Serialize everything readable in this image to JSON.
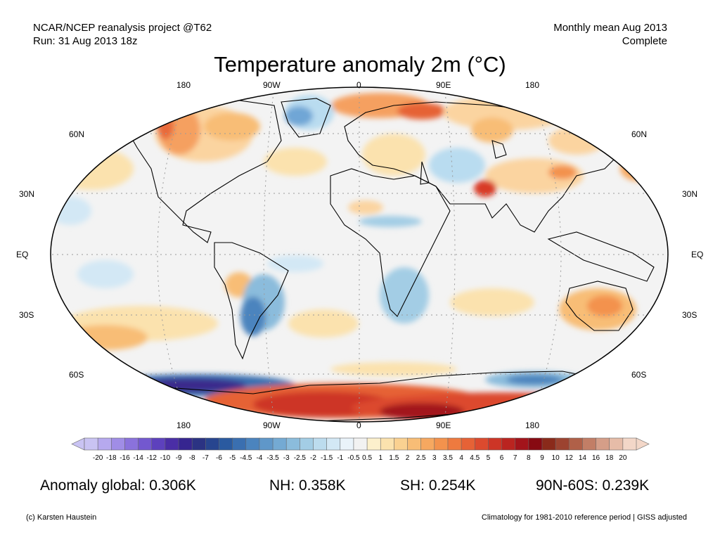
{
  "header": {
    "source_line1": "NCAR/NCEP reanalysis project @T62",
    "source_line2": "Run: 31 Aug 2013 18z",
    "period_line1": "Monthly mean Aug 2013",
    "period_line2": "Complete"
  },
  "map": {
    "title": "Temperature anomaly 2m (°C)",
    "projection": "Robinson",
    "lon_labels_top": [
      "180",
      "90W",
      "0",
      "90E",
      "180"
    ],
    "lon_labels_bottom": [
      "180",
      "90W",
      "0",
      "90E",
      "180"
    ],
    "lat_labels_left": [
      "60N",
      "30N",
      "EQ",
      "30S",
      "60S"
    ],
    "lat_labels_right": [
      "60N",
      "30N",
      "EQ",
      "30S",
      "60S"
    ],
    "colors": {
      "land_ocean_neutral": "#f3f3f3",
      "warm_light": "#fbd4a0",
      "warm_mid": "#f5a060",
      "warm_strong": "#d83a26",
      "warm_extreme": "#9c0f14",
      "cold_light": "#b9dcf0",
      "cold_mid": "#6fa6d6",
      "cold_strong": "#3a5fb0",
      "cold_extreme": "#3a2a8c"
    }
  },
  "legend": {
    "tick_labels": [
      "-20",
      "-18",
      "-16",
      "-14",
      "-12",
      "-10",
      "-9",
      "-8",
      "-7",
      "-6",
      "-5",
      "-4.5",
      "-4",
      "-3.5",
      "-3",
      "-2.5",
      "-2",
      "-1.5",
      "-1",
      "-0.5",
      "0.5",
      "1",
      "1.5",
      "2",
      "2.5",
      "3",
      "3.5",
      "4",
      "4.5",
      "5",
      "6",
      "7",
      "8",
      "9",
      "10",
      "12",
      "14",
      "16",
      "18",
      "20"
    ],
    "colors": [
      "#c9c3f3",
      "#b6a9ee",
      "#a08de6",
      "#8a72dc",
      "#7358cf",
      "#5d41bd",
      "#4a2ea6",
      "#362590",
      "#2b3383",
      "#27458f",
      "#2a5aa0",
      "#3a6fb0",
      "#4b84be",
      "#5f97c9",
      "#74aad3",
      "#8bbcdc",
      "#a3cde5",
      "#bcdcee",
      "#d3e8f5",
      "#eaf3fa",
      "#f2f2f2",
      "#fcf0cc",
      "#fbe2ae",
      "#fad191",
      "#f8bd76",
      "#f6a860",
      "#f3924d",
      "#ee7a3f",
      "#e66236",
      "#dc4a2e",
      "#cd3526",
      "#ba2420",
      "#a3141b",
      "#870a12",
      "#8a2a1a",
      "#9c4330",
      "#b06048",
      "#c27e66",
      "#d59e88",
      "#e6bca8",
      "#f3d7c8"
    ]
  },
  "stats": {
    "global": "Anomaly global: 0.306K",
    "nh": "NH: 0.358K",
    "sh": "SH: 0.254K",
    "arctic_band": "90N-60S: 0.239K"
  },
  "footer": {
    "credit": "(c) Karsten Haustein",
    "note": "Climatology for 1981-2010 reference period | GISS adjusted"
  }
}
